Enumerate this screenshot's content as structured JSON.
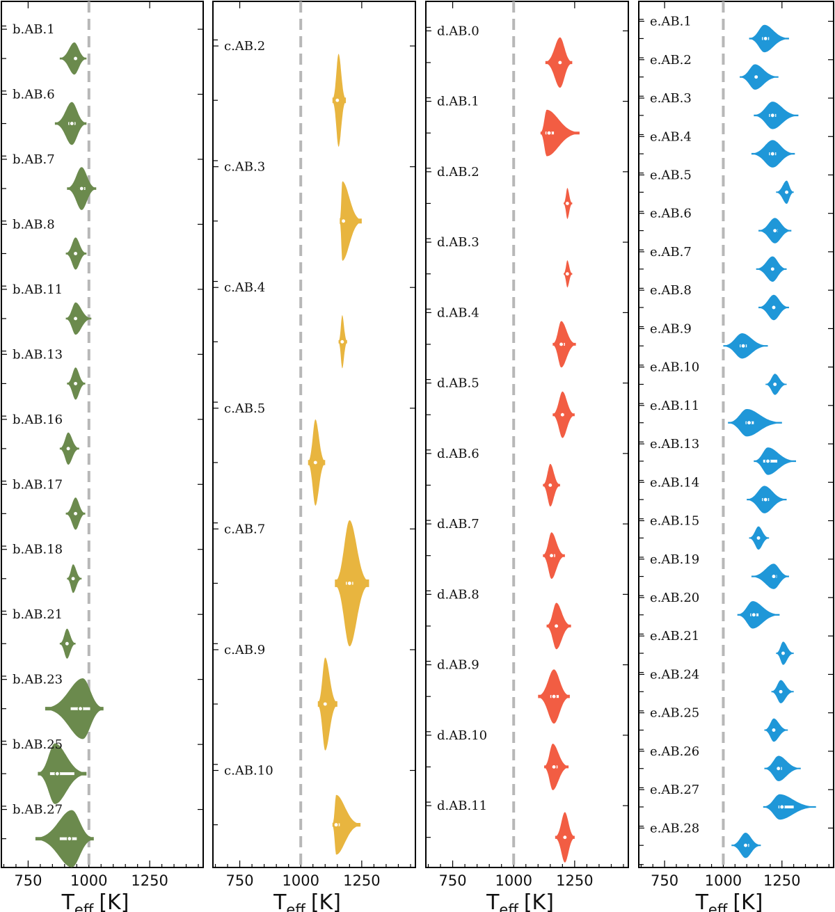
{
  "chart_data": [
    {
      "type": "violin",
      "panel": "b",
      "color": "#6b8a4d",
      "orientation": "horizontal",
      "xlabel": "T",
      "xlabel_sub": "eff",
      "xlabel_unit": "[K]",
      "xticks": [
        750,
        1000,
        1250
      ],
      "xlim": [
        640,
        1470
      ],
      "reference_line": 1000,
      "categories": [
        "b.AB.1",
        "b.AB.6",
        "b.AB.7",
        "b.AB.8",
        "b.AB.11",
        "b.AB.13",
        "b.AB.16",
        "b.AB.17",
        "b.AB.18",
        "b.AB.21",
        "b.AB.23",
        "b.AB.25",
        "b.AB.27"
      ],
      "values": [
        {
          "median": 945,
          "q1": 935,
          "q3": 955,
          "min": 880,
          "max": 990,
          "mode": 940,
          "halfwidth": 0.45
        },
        {
          "median": 930,
          "q1": 915,
          "q3": 945,
          "min": 860,
          "max": 990,
          "mode": 930,
          "halfwidth": 0.6
        },
        {
          "median": 970,
          "q1": 960,
          "q3": 985,
          "min": 910,
          "max": 1030,
          "mode": 970,
          "halfwidth": 0.6
        },
        {
          "median": 945,
          "q1": 935,
          "q3": 955,
          "min": 905,
          "max": 990,
          "mode": 945,
          "halfwidth": 0.45
        },
        {
          "median": 945,
          "q1": 935,
          "q3": 955,
          "min": 905,
          "max": 1010,
          "mode": 945,
          "halfwidth": 0.45
        },
        {
          "median": 945,
          "q1": 935,
          "q3": 955,
          "min": 910,
          "max": 985,
          "mode": 945,
          "halfwidth": 0.45
        },
        {
          "median": 915,
          "q1": 905,
          "q3": 925,
          "min": 880,
          "max": 960,
          "mode": 915,
          "halfwidth": 0.45
        },
        {
          "median": 945,
          "q1": 935,
          "q3": 955,
          "min": 905,
          "max": 985,
          "mode": 945,
          "halfwidth": 0.45
        },
        {
          "median": 935,
          "q1": 925,
          "q3": 945,
          "min": 910,
          "max": 970,
          "mode": 935,
          "halfwidth": 0.4
        },
        {
          "median": 910,
          "q1": 900,
          "q3": 920,
          "min": 880,
          "max": 945,
          "mode": 910,
          "halfwidth": 0.42
        },
        {
          "median": 965,
          "q1": 925,
          "q3": 1005,
          "min": 820,
          "max": 1060,
          "mode": 975,
          "halfwidth": 0.85
        },
        {
          "median": 870,
          "q1": 840,
          "q3": 940,
          "min": 790,
          "max": 990,
          "mode": 860,
          "halfwidth": 0.85
        },
        {
          "median": 920,
          "q1": 880,
          "q3": 950,
          "min": 780,
          "max": 1020,
          "mode": 930,
          "halfwidth": 0.8
        }
      ]
    },
    {
      "type": "violin",
      "panel": "c",
      "color": "#e8b53f",
      "orientation": "horizontal",
      "xlabel": "T",
      "xlabel_sub": "eff",
      "xlabel_unit": "[K]",
      "xticks": [
        750,
        1000,
        1250
      ],
      "xlim": [
        640,
        1470
      ],
      "reference_line": 1000,
      "categories": [
        "c.AB.2",
        "c.AB.3",
        "c.AB.4",
        "c.AB.5",
        "c.AB.7",
        "c.AB.9",
        "c.AB.10"
      ],
      "values": [
        {
          "median": 1150,
          "q1": 1140,
          "q3": 1160,
          "min": 1130,
          "max": 1185,
          "mode": 1155,
          "halfwidth": 0.7
        },
        {
          "median": 1175,
          "q1": 1165,
          "q3": 1185,
          "min": 1160,
          "max": 1250,
          "mode": 1170,
          "halfwidth": 0.6
        },
        {
          "median": 1170,
          "q1": 1162,
          "q3": 1178,
          "min": 1155,
          "max": 1190,
          "mode": 1170,
          "halfwidth": 0.4
        },
        {
          "median": 1060,
          "q1": 1050,
          "q3": 1070,
          "min": 1030,
          "max": 1100,
          "mode": 1060,
          "halfwidth": 0.65
        },
        {
          "median": 1200,
          "q1": 1185,
          "q3": 1215,
          "min": 1140,
          "max": 1280,
          "mode": 1200,
          "halfwidth": 0.95
        },
        {
          "median": 1100,
          "q1": 1090,
          "q3": 1110,
          "min": 1070,
          "max": 1150,
          "mode": 1100,
          "halfwidth": 0.7
        },
        {
          "median": 1145,
          "q1": 1138,
          "q3": 1160,
          "min": 1130,
          "max": 1245,
          "mode": 1145,
          "halfwidth": 0.45
        }
      ]
    },
    {
      "type": "violin",
      "panel": "d",
      "color": "#f25d43",
      "orientation": "horizontal",
      "xlabel": "T",
      "xlabel_sub": "eff",
      "xlabel_unit": "[K]",
      "xticks": [
        750,
        1000,
        1250
      ],
      "xlim": [
        640,
        1470
      ],
      "reference_line": 1000,
      "categories": [
        "d.AB.0",
        "d.AB.1",
        "d.AB.2",
        "d.AB.3",
        "d.AB.4",
        "d.AB.5",
        "d.AB.6",
        "d.AB.7",
        "d.AB.8",
        "d.AB.9",
        "d.AB.10",
        "d.AB.11"
      ],
      "values": [
        {
          "median": 1190,
          "q1": 1180,
          "q3": 1200,
          "min": 1130,
          "max": 1240,
          "mode": 1190,
          "halfwidth": 0.65
        },
        {
          "median": 1145,
          "q1": 1130,
          "q3": 1165,
          "min": 1110,
          "max": 1270,
          "mode": 1135,
          "halfwidth": 0.6
        },
        {
          "median": 1220,
          "q1": 1212,
          "q3": 1228,
          "min": 1205,
          "max": 1240,
          "mode": 1220,
          "halfwidth": 0.4
        },
        {
          "median": 1220,
          "q1": 1212,
          "q3": 1228,
          "min": 1205,
          "max": 1240,
          "mode": 1220,
          "halfwidth": 0.35
        },
        {
          "median": 1195,
          "q1": 1185,
          "q3": 1210,
          "min": 1160,
          "max": 1255,
          "mode": 1195,
          "halfwidth": 0.6
        },
        {
          "median": 1200,
          "q1": 1190,
          "q3": 1210,
          "min": 1160,
          "max": 1250,
          "mode": 1200,
          "halfwidth": 0.6
        },
        {
          "median": 1150,
          "q1": 1142,
          "q3": 1160,
          "min": 1120,
          "max": 1190,
          "mode": 1150,
          "halfwidth": 0.55
        },
        {
          "median": 1155,
          "q1": 1145,
          "q3": 1170,
          "min": 1120,
          "max": 1210,
          "mode": 1155,
          "halfwidth": 0.6
        },
        {
          "median": 1175,
          "q1": 1165,
          "q3": 1185,
          "min": 1135,
          "max": 1235,
          "mode": 1175,
          "halfwidth": 0.6
        },
        {
          "median": 1165,
          "q1": 1150,
          "q3": 1185,
          "min": 1100,
          "max": 1230,
          "mode": 1165,
          "halfwidth": 0.7
        },
        {
          "median": 1165,
          "q1": 1155,
          "q3": 1180,
          "min": 1125,
          "max": 1225,
          "mode": 1160,
          "halfwidth": 0.6
        },
        {
          "median": 1210,
          "q1": 1200,
          "q3": 1220,
          "min": 1170,
          "max": 1250,
          "mode": 1210,
          "halfwidth": 0.65
        }
      ]
    },
    {
      "type": "violin",
      "panel": "e",
      "color": "#1f97d8",
      "orientation": "horizontal",
      "xlabel": "T",
      "xlabel_sub": "eff",
      "xlabel_unit": "[K]",
      "xticks": [
        750,
        1000,
        1250
      ],
      "xlim": [
        640,
        1470
      ],
      "reference_line": 1000,
      "categories": [
        "e.AB.1",
        "e.AB.2",
        "e.AB.3",
        "e.AB.4",
        "e.AB.5",
        "e.AB.6",
        "e.AB.7",
        "e.AB.8",
        "e.AB.9",
        "e.AB.10",
        "e.AB.11",
        "e.AB.13",
        "e.AB.14",
        "e.AB.15",
        "e.AB.19",
        "e.AB.20",
        "e.AB.21",
        "e.AB.24",
        "e.AB.25",
        "e.AB.26",
        "e.AB.27",
        "e.AB.28"
      ],
      "values": [
        {
          "median": 1180,
          "q1": 1165,
          "q3": 1195,
          "min": 1110,
          "max": 1280,
          "mode": 1175,
          "halfwidth": 0.65
        },
        {
          "median": 1140,
          "q1": 1130,
          "q3": 1150,
          "min": 1070,
          "max": 1235,
          "mode": 1135,
          "halfwidth": 0.6
        },
        {
          "median": 1210,
          "q1": 1195,
          "q3": 1225,
          "min": 1130,
          "max": 1320,
          "mode": 1210,
          "halfwidth": 0.65
        },
        {
          "median": 1210,
          "q1": 1195,
          "q3": 1225,
          "min": 1120,
          "max": 1305,
          "mode": 1210,
          "halfwidth": 0.65
        },
        {
          "median": 1270,
          "q1": 1262,
          "q3": 1280,
          "min": 1225,
          "max": 1300,
          "mode": 1270,
          "halfwidth": 0.55
        },
        {
          "median": 1220,
          "q1": 1210,
          "q3": 1232,
          "min": 1150,
          "max": 1290,
          "mode": 1220,
          "halfwidth": 0.6
        },
        {
          "median": 1210,
          "q1": 1200,
          "q3": 1220,
          "min": 1140,
          "max": 1270,
          "mode": 1210,
          "halfwidth": 0.6
        },
        {
          "median": 1215,
          "q1": 1205,
          "q3": 1225,
          "min": 1150,
          "max": 1280,
          "mode": 1215,
          "halfwidth": 0.6
        },
        {
          "median": 1085,
          "q1": 1070,
          "q3": 1100,
          "min": 1000,
          "max": 1190,
          "mode": 1080,
          "halfwidth": 0.6
        },
        {
          "median": 1220,
          "q1": 1212,
          "q3": 1230,
          "min": 1180,
          "max": 1270,
          "mode": 1220,
          "halfwidth": 0.5
        },
        {
          "median": 1110,
          "q1": 1095,
          "q3": 1130,
          "min": 1020,
          "max": 1250,
          "mode": 1100,
          "halfwidth": 0.65
        },
        {
          "median": 1190,
          "q1": 1170,
          "q3": 1230,
          "min": 1130,
          "max": 1310,
          "mode": 1190,
          "halfwidth": 0.65
        },
        {
          "median": 1180,
          "q1": 1165,
          "q3": 1195,
          "min": 1100,
          "max": 1270,
          "mode": 1175,
          "halfwidth": 0.65
        },
        {
          "median": 1150,
          "q1": 1140,
          "q3": 1160,
          "min": 1110,
          "max": 1195,
          "mode": 1150,
          "halfwidth": 0.55
        },
        {
          "median": 1215,
          "q1": 1205,
          "q3": 1228,
          "min": 1120,
          "max": 1280,
          "mode": 1215,
          "halfwidth": 0.6
        },
        {
          "median": 1130,
          "q1": 1115,
          "q3": 1150,
          "min": 1060,
          "max": 1240,
          "mode": 1125,
          "halfwidth": 0.65
        },
        {
          "median": 1255,
          "q1": 1248,
          "q3": 1265,
          "min": 1225,
          "max": 1300,
          "mode": 1255,
          "halfwidth": 0.55
        },
        {
          "median": 1245,
          "q1": 1238,
          "q3": 1255,
          "min": 1205,
          "max": 1300,
          "mode": 1245,
          "halfwidth": 0.55
        },
        {
          "median": 1215,
          "q1": 1208,
          "q3": 1225,
          "min": 1175,
          "max": 1275,
          "mode": 1215,
          "halfwidth": 0.55
        },
        {
          "median": 1235,
          "q1": 1225,
          "q3": 1250,
          "min": 1175,
          "max": 1330,
          "mode": 1235,
          "halfwidth": 0.6
        },
        {
          "median": 1250,
          "q1": 1235,
          "q3": 1300,
          "min": 1170,
          "max": 1395,
          "mode": 1240,
          "halfwidth": 0.6
        },
        {
          "median": 1095,
          "q1": 1085,
          "q3": 1110,
          "min": 1035,
          "max": 1160,
          "mode": 1095,
          "halfwidth": 0.6
        }
      ]
    }
  ]
}
